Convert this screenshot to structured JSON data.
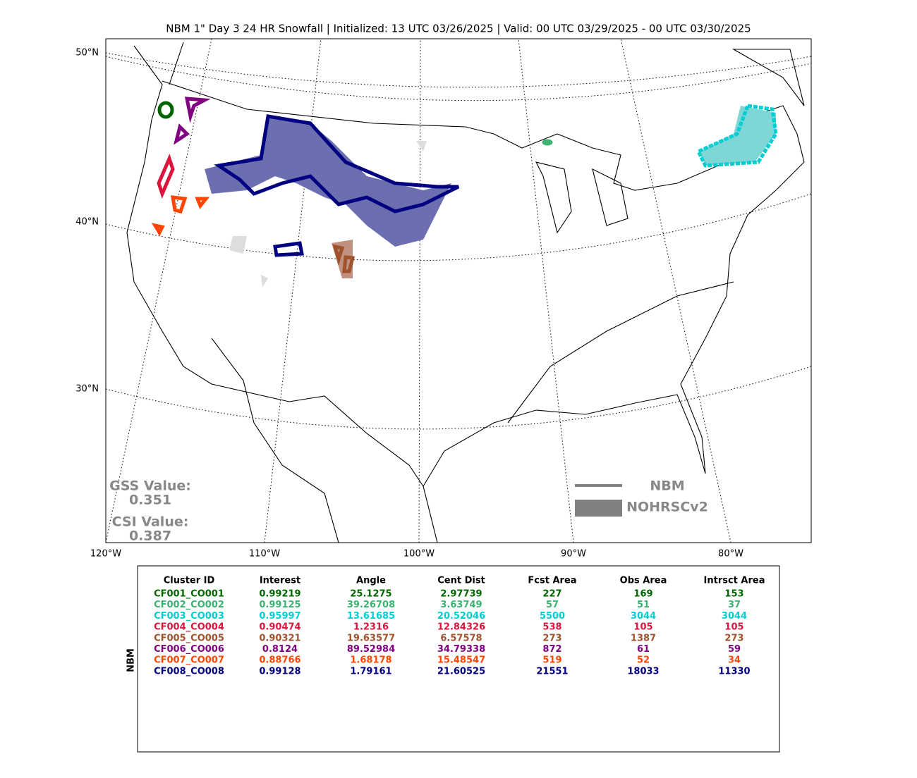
{
  "title": "NBM 1\" Day 3 24 HR Snowfall | Initialized: 13 UTC 03/26/2025 | Valid: 00 UTC 03/29/2025 - 00 UTC 03/30/2025",
  "map": {
    "lat_labels": [
      "50°N",
      "40°N",
      "30°N"
    ],
    "lon_labels": [
      "120°W",
      "110°W",
      "100°W",
      "90°W",
      "80°W"
    ]
  },
  "legend": {
    "items": [
      "NBM",
      "NOHRSCv2"
    ]
  },
  "scores": {
    "gss_label": "GSS Value:",
    "gss_value": "0.351",
    "csi_label": "CSI Value:",
    "csi_value": "0.387"
  },
  "table": {
    "side_label": "NBM",
    "columns": [
      "Cluster ID",
      "Interest",
      "Angle",
      "Cent Dist",
      "Fcst Area",
      "Obs Area",
      "Intrsct Area"
    ],
    "row_colors": [
      "#006400",
      "#3cb371",
      "#00ced1",
      "#dc143c",
      "#a0522d",
      "#800080",
      "#ff4500",
      "#000080"
    ],
    "rows": [
      [
        "CF001_CO001",
        "0.99219",
        "25.1275",
        "2.97739",
        "227",
        "169",
        "153"
      ],
      [
        "CF002_CO002",
        "0.99125",
        "39.26708",
        "3.63749",
        "57",
        "51",
        "37"
      ],
      [
        "CF003_CO003",
        "0.95997",
        "13.61685",
        "20.52046",
        "5500",
        "3044",
        "3044"
      ],
      [
        "CF004_CO004",
        "0.90474",
        "1.2316",
        "12.84326",
        "538",
        "105",
        "105"
      ],
      [
        "CF005_CO005",
        "0.90321",
        "19.63577",
        "6.57578",
        "273",
        "1387",
        "273"
      ],
      [
        "CF006_CO006",
        "0.8124",
        "89.52984",
        "34.79338",
        "872",
        "61",
        "59"
      ],
      [
        "CF007_CO007",
        "0.88766",
        "1.68178",
        "15.48547",
        "519",
        "52",
        "34"
      ],
      [
        "CF008_CO008",
        "0.99128",
        "1.79161",
        "21.60525",
        "21551",
        "18033",
        "11330"
      ]
    ]
  }
}
